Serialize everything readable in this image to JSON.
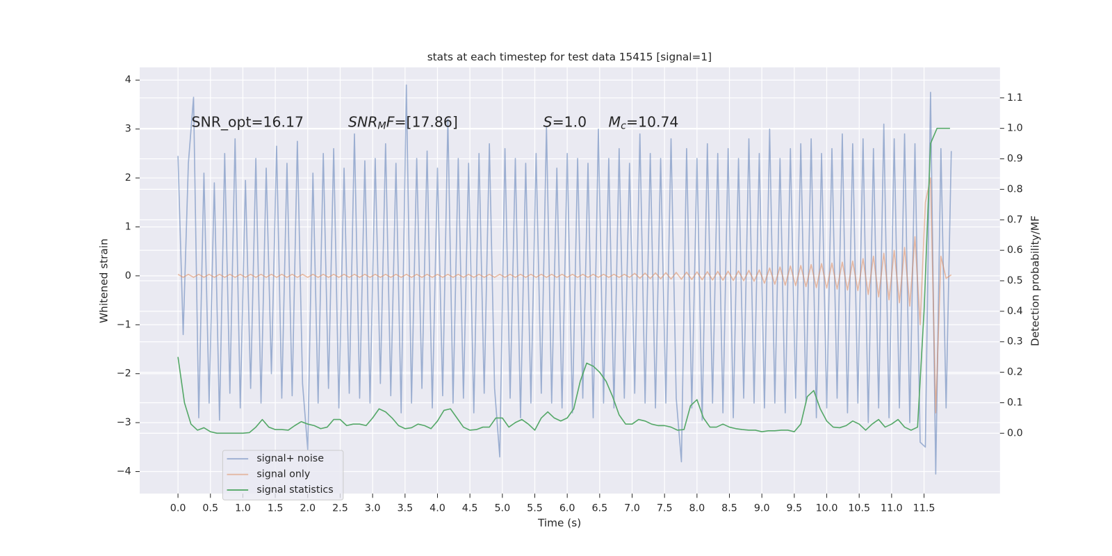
{
  "chart_data": {
    "type": "line",
    "title": "stats at each timestep for test data 15415 [signal=1]",
    "xlabel": "Time (s)",
    "ylabel": "Whitened strain",
    "y2label": "Detection probability/MF",
    "annotations": [
      {
        "parts": [
          {
            "text": "SNR_opt=16.17"
          }
        ]
      },
      {
        "parts": [
          {
            "text": "SNR",
            "italic": true
          },
          {
            "text": "M",
            "italic": true,
            "sub": true
          },
          {
            "text": "F",
            "italic": true
          },
          {
            "text": "=[17.86]"
          }
        ]
      },
      {
        "parts": [
          {
            "text": "S",
            "italic": true
          },
          {
            "text": "=1.0"
          }
        ]
      },
      {
        "parts": [
          {
            "text": "M",
            "italic": true
          },
          {
            "text": "c",
            "italic": true,
            "sub": true
          },
          {
            "text": "=10.74"
          }
        ]
      }
    ],
    "xlim": [
      -0.59,
      12.67
    ],
    "ylim": [
      -4.45,
      4.26
    ],
    "y2lim": [
      -0.198,
      1.2
    ],
    "xticks": [
      {
        "value": 0,
        "label": "0.0"
      },
      0.5,
      {
        "value": 1,
        "label": "1.0"
      },
      1.5,
      {
        "value": 2,
        "label": "2.0"
      },
      2.5,
      {
        "value": 3,
        "label": "3.0"
      },
      3.5,
      {
        "value": 4,
        "label": "4.0"
      },
      4.5,
      {
        "value": 5,
        "label": "5.0"
      },
      5.5,
      {
        "value": 6,
        "label": "6.0"
      },
      6.5,
      {
        "value": 7,
        "label": "7.0"
      },
      7.5,
      {
        "value": 8,
        "label": "8.0"
      },
      8.5,
      {
        "value": 9,
        "label": "9.0"
      },
      9.5,
      {
        "value": 10,
        "label": "10.0"
      },
      10.5,
      {
        "value": 11,
        "label": "11.0"
      },
      11.5
    ],
    "yticks": [
      {
        "value": -4,
        "label": "−4"
      },
      {
        "value": -3,
        "label": "−3"
      },
      {
        "value": -2,
        "label": "−2"
      },
      {
        "value": -1,
        "label": "−1"
      },
      0,
      1,
      2,
      3,
      4
    ],
    "y2ticks": [
      {
        "value": 0,
        "label": "0.0"
      },
      0.1,
      0.2,
      0.3,
      0.4,
      0.5,
      0.6,
      0.7,
      0.8,
      0.9,
      {
        "value": 1,
        "label": "1.0"
      },
      1.1
    ],
    "grid": true,
    "legend": "lower left",
    "x": [
      0,
      0.08,
      0.16,
      0.24,
      0.32,
      0.4,
      0.48,
      0.56,
      0.64,
      0.72,
      0.8,
      0.88,
      0.96,
      1.04,
      1.12,
      1.2,
      1.28,
      1.36,
      1.44,
      1.52,
      1.6,
      1.68,
      1.76,
      1.84,
      1.92,
      2,
      2.08,
      2.16,
      2.24,
      2.32,
      2.4,
      2.48,
      2.56,
      2.64,
      2.72,
      2.8,
      2.88,
      2.96,
      3.04,
      3.12,
      3.2,
      3.28,
      3.36,
      3.44,
      3.52,
      3.6,
      3.68,
      3.76,
      3.84,
      3.92,
      4,
      4.08,
      4.16,
      4.24,
      4.32,
      4.4,
      4.48,
      4.56,
      4.64,
      4.72,
      4.8,
      4.88,
      4.96,
      5.04,
      5.12,
      5.2,
      5.28,
      5.36,
      5.44,
      5.52,
      5.6,
      5.68,
      5.76,
      5.84,
      5.92,
      6,
      6.08,
      6.16,
      6.24,
      6.32,
      6.4,
      6.48,
      6.56,
      6.64,
      6.72,
      6.8,
      6.88,
      6.96,
      7.04,
      7.12,
      7.2,
      7.28,
      7.36,
      7.44,
      7.52,
      7.6,
      7.68,
      7.76,
      7.84,
      7.92,
      8,
      8.08,
      8.16,
      8.24,
      8.32,
      8.4,
      8.48,
      8.56,
      8.64,
      8.72,
      8.8,
      8.88,
      8.96,
      9.04,
      9.12,
      9.2,
      9.28,
      9.36,
      9.44,
      9.52,
      9.6,
      9.68,
      9.76,
      9.84,
      9.92,
      10,
      10.08,
      10.16,
      10.24,
      10.32,
      10.4,
      10.48,
      10.56,
      10.64,
      10.72,
      10.8,
      10.88,
      10.96,
      11.04,
      11.12,
      11.2,
      11.28,
      11.36,
      11.44,
      11.52,
      11.6,
      11.68,
      11.76,
      11.84,
      11.92
    ],
    "series": [
      {
        "name": "signal+ noise",
        "color": "#4c72b0",
        "opacity": 0.5,
        "values": [
          2.45,
          -1.2,
          2.3,
          3.65,
          -2.9,
          2.1,
          -2.6,
          1.9,
          -2.95,
          2.5,
          -2.4,
          2.8,
          -2.7,
          1.95,
          -2.3,
          2.4,
          -2.6,
          2.2,
          -2.0,
          2.65,
          -2.5,
          2.3,
          -2.45,
          2.75,
          -2.2,
          -3.55,
          2.1,
          -2.6,
          2.5,
          -2.3,
          2.6,
          -2.7,
          2.2,
          -2.4,
          2.9,
          -2.5,
          2.35,
          -2.6,
          2.4,
          -2.2,
          2.7,
          -2.45,
          2.3,
          -2.8,
          3.9,
          -2.6,
          2.4,
          -2.3,
          2.55,
          -2.7,
          2.2,
          -2.45,
          3.2,
          -2.6,
          2.4,
          -2.5,
          2.3,
          -2.8,
          2.5,
          -2.4,
          2.7,
          -2.3,
          -3.7,
          2.6,
          -2.5,
          2.4,
          -2.9,
          2.3,
          -2.6,
          2.5,
          -2.4,
          3.05,
          -2.6,
          2.2,
          -2.7,
          2.5,
          -2.8,
          2.4,
          -2.5,
          2.3,
          -2.9,
          3.0,
          -2.6,
          2.4,
          -2.7,
          2.6,
          -2.5,
          2.3,
          -2.4,
          2.9,
          -2.6,
          2.5,
          -2.7,
          2.4,
          -2.6,
          2.8,
          -2.5,
          -3.8,
          2.6,
          -2.7,
          2.4,
          -2.95,
          2.7,
          -2.6,
          2.5,
          -2.8,
          2.6,
          -2.9,
          2.4,
          -2.5,
          2.8,
          -2.6,
          2.5,
          -2.7,
          3.0,
          -2.6,
          2.4,
          -2.8,
          2.6,
          -2.5,
          2.7,
          -2.6,
          2.8,
          -2.9,
          2.5,
          -2.7,
          2.6,
          -2.5,
          2.9,
          -2.8,
          2.7,
          -2.6,
          2.8,
          -3.0,
          2.6,
          -2.7,
          3.1,
          -2.9,
          2.8,
          -2.7,
          2.9,
          -3.0,
          2.7,
          -3.4,
          -3.5,
          3.75,
          -4.05,
          2.6,
          -2.7,
          2.55
        ]
      },
      {
        "name": "signal only",
        "color": "#dd8452",
        "opacity": 0.5,
        "values": [
          0.03,
          -0.03,
          0.03,
          -0.03,
          0.03,
          -0.03,
          0.03,
          -0.03,
          0.03,
          -0.03,
          0.03,
          -0.03,
          0.03,
          -0.03,
          0.03,
          -0.03,
          0.03,
          -0.03,
          0.03,
          -0.03,
          0.03,
          -0.03,
          0.03,
          -0.03,
          0.03,
          -0.03,
          0.03,
          -0.03,
          0.03,
          -0.03,
          0.03,
          -0.03,
          0.03,
          -0.03,
          0.03,
          -0.03,
          0.03,
          -0.03,
          0.03,
          -0.03,
          0.03,
          -0.03,
          0.03,
          -0.03,
          0.03,
          -0.03,
          0.03,
          -0.03,
          0.03,
          -0.03,
          0.03,
          -0.03,
          0.03,
          -0.03,
          0.03,
          -0.03,
          0.03,
          -0.03,
          0.03,
          -0.03,
          0.03,
          -0.03,
          0.03,
          -0.03,
          0.03,
          -0.03,
          0.03,
          -0.03,
          0.03,
          -0.03,
          0.03,
          -0.03,
          0.03,
          -0.03,
          0.03,
          -0.03,
          0.03,
          -0.03,
          0.03,
          -0.03,
          0.03,
          -0.03,
          0.03,
          -0.03,
          0.03,
          -0.03,
          0.03,
          -0.03,
          0.05,
          -0.05,
          0.055,
          -0.055,
          0.06,
          -0.06,
          0.065,
          -0.065,
          0.07,
          -0.07,
          0.075,
          -0.075,
          0.08,
          -0.08,
          0.085,
          -0.085,
          0.09,
          -0.09,
          0.095,
          -0.095,
          0.1,
          -0.1,
          0.11,
          -0.11,
          0.12,
          -0.15,
          0.16,
          -0.17,
          0.18,
          -0.19,
          0.2,
          -0.2,
          0.21,
          -0.22,
          0.23,
          -0.24,
          0.25,
          -0.25,
          0.26,
          -0.27,
          0.28,
          -0.29,
          0.3,
          -0.3,
          0.35,
          -0.38,
          0.4,
          -0.43,
          0.46,
          -0.49,
          0.52,
          -0.55,
          0.58,
          -0.62,
          0.8,
          -1.0,
          1.5,
          2.0,
          -2.8,
          0.4,
          -0.05,
          0.02
        ]
      },
      {
        "name": "signal statistics",
        "color": "#55a868",
        "opacity": 1,
        "axis": "y2",
        "x": [
          0,
          0.1,
          0.2,
          0.3,
          0.4,
          0.5,
          0.6,
          0.7,
          0.8,
          0.9,
          1,
          1.1,
          1.2,
          1.3,
          1.4,
          1.5,
          1.6,
          1.7,
          1.8,
          1.9,
          2,
          2.1,
          2.2,
          2.3,
          2.4,
          2.5,
          2.6,
          2.7,
          2.8,
          2.9,
          3,
          3.1,
          3.2,
          3.3,
          3.4,
          3.5,
          3.6,
          3.7,
          3.8,
          3.9,
          4,
          4.1,
          4.2,
          4.3,
          4.4,
          4.5,
          4.6,
          4.7,
          4.8,
          4.9,
          5,
          5.1,
          5.2,
          5.3,
          5.4,
          5.5,
          5.6,
          5.7,
          5.8,
          5.9,
          6,
          6.1,
          6.2,
          6.3,
          6.4,
          6.5,
          6.6,
          6.7,
          6.8,
          6.9,
          7,
          7.1,
          7.2,
          7.3,
          7.4,
          7.5,
          7.6,
          7.7,
          7.8,
          7.9,
          8,
          8.1,
          8.2,
          8.3,
          8.4,
          8.5,
          8.6,
          8.7,
          8.8,
          8.9,
          9,
          9.1,
          9.2,
          9.3,
          9.4,
          9.5,
          9.6,
          9.7,
          9.8,
          9.9,
          10,
          10.1,
          10.2,
          10.3,
          10.4,
          10.5,
          10.6,
          10.7,
          10.8,
          10.9,
          11,
          11.1,
          11.2,
          11.3,
          11.4,
          11.5,
          11.6,
          11.7,
          11.8,
          11.9
        ],
        "values": [
          0.25,
          0.1,
          0.03,
          0.01,
          0.018,
          0.005,
          0,
          0,
          0,
          0,
          0,
          0.002,
          0.02,
          0.045,
          0.02,
          0.012,
          0.012,
          0.01,
          0.025,
          0.038,
          0.03,
          0.025,
          0.015,
          0.02,
          0.045,
          0.045,
          0.025,
          0.03,
          0.03,
          0.025,
          0.05,
          0.08,
          0.07,
          0.05,
          0.025,
          0.015,
          0.018,
          0.03,
          0.025,
          0.015,
          0.04,
          0.075,
          0.08,
          0.05,
          0.02,
          0.01,
          0.012,
          0.02,
          0.02,
          0.05,
          0.05,
          0.02,
          0.035,
          0.045,
          0.03,
          0.01,
          0.05,
          0.07,
          0.05,
          0.04,
          0.05,
          0.08,
          0.17,
          0.23,
          0.22,
          0.2,
          0.17,
          0.12,
          0.06,
          0.03,
          0.03,
          0.045,
          0.04,
          0.03,
          0.025,
          0.025,
          0.02,
          0.01,
          0.012,
          0.09,
          0.11,
          0.05,
          0.02,
          0.02,
          0.03,
          0.02,
          0.015,
          0.012,
          0.01,
          0.01,
          0.005,
          0.008,
          0.008,
          0.01,
          0.01,
          0.005,
          0.03,
          0.12,
          0.14,
          0.08,
          0.04,
          0.02,
          0.018,
          0.025,
          0.04,
          0.03,
          0.01,
          0.03,
          0.045,
          0.02,
          0.03,
          0.045,
          0.02,
          0.01,
          0.02,
          0.4,
          0.95,
          1.0,
          1.0,
          1.0
        ]
      }
    ]
  }
}
